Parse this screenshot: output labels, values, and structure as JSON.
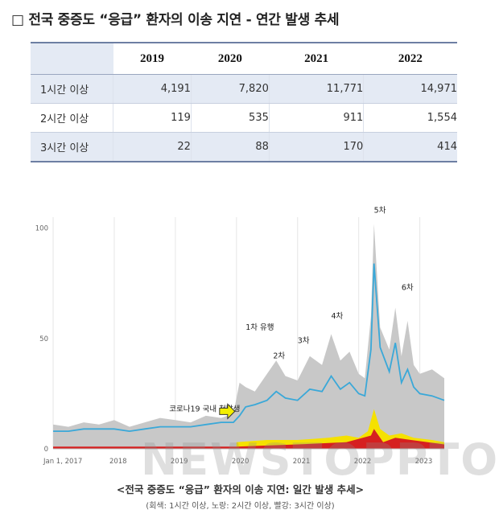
{
  "heading": "□ 전국 중증도 “응급” 환자의 이송 지연 - 연간 발생 추세",
  "table": {
    "years": [
      "2019",
      "2020",
      "2021",
      "2022"
    ],
    "rows": [
      {
        "label": "1시간 이상",
        "values": [
          "4,191",
          "7,820",
          "11,771",
          "14,971"
        ]
      },
      {
        "label": "2시간 이상",
        "values": [
          "119",
          "535",
          "911",
          "1,554"
        ]
      },
      {
        "label": "3시간 이상",
        "values": [
          "22",
          "88",
          "170",
          "414"
        ]
      }
    ]
  },
  "chart_data": {
    "type": "area",
    "title": "<전국 중증도 “응급” 환자의 이송 지연: 일간 발생 추세>",
    "subtitle": "(회색: 1시간 이상, 노랑: 2시간 이상, 빨강: 3시간 이상)",
    "x_tick_labels": [
      "Jan 1, 2017",
      "2018",
      "2019",
      "2020",
      "2021",
      "2022",
      "2023"
    ],
    "y_ticks": [
      0,
      50,
      100
    ],
    "xlim": [
      2017.0,
      2023.4
    ],
    "ylim": [
      0,
      105
    ],
    "series": [
      {
        "name": "1시간 이상",
        "color": "#c8c8c8",
        "x": [
          2017.0,
          2017.25,
          2017.5,
          2017.75,
          2018.0,
          2018.25,
          2018.5,
          2018.75,
          2019.0,
          2019.25,
          2019.5,
          2019.75,
          2019.95,
          2020.05,
          2020.15,
          2020.3,
          2020.5,
          2020.65,
          2020.8,
          2021.0,
          2021.2,
          2021.4,
          2021.55,
          2021.7,
          2021.85,
          2022.0,
          2022.1,
          2022.2,
          2022.25,
          2022.35,
          2022.5,
          2022.6,
          2022.7,
          2022.8,
          2022.9,
          2023.0,
          2023.2,
          2023.4
        ],
        "y": [
          11,
          10,
          12,
          11,
          13,
          10,
          12,
          14,
          13,
          12,
          15,
          14,
          16,
          30,
          28,
          26,
          34,
          40,
          33,
          31,
          42,
          38,
          52,
          40,
          44,
          34,
          32,
          60,
          102,
          55,
          45,
          64,
          42,
          58,
          38,
          34,
          36,
          32
        ]
      },
      {
        "name": "1시간 이상 추세",
        "color": "#3aa8d8",
        "x": [
          2017.0,
          2017.25,
          2017.5,
          2017.75,
          2018.0,
          2018.25,
          2018.5,
          2018.75,
          2019.0,
          2019.25,
          2019.5,
          2019.75,
          2019.95,
          2020.05,
          2020.15,
          2020.3,
          2020.5,
          2020.65,
          2020.8,
          2021.0,
          2021.2,
          2021.4,
          2021.55,
          2021.7,
          2021.85,
          2022.0,
          2022.1,
          2022.2,
          2022.25,
          2022.35,
          2022.5,
          2022.6,
          2022.7,
          2022.8,
          2022.9,
          2023.0,
          2023.2,
          2023.4
        ],
        "y": [
          8,
          8,
          9,
          9,
          9,
          8,
          9,
          10,
          10,
          10,
          11,
          12,
          12,
          15,
          19,
          20,
          22,
          26,
          23,
          22,
          27,
          26,
          33,
          27,
          30,
          25,
          24,
          45,
          84,
          46,
          35,
          48,
          30,
          36,
          28,
          25,
          24,
          22
        ]
      },
      {
        "name": "2시간 이상",
        "color": "#f5e100",
        "x": [
          2020.0,
          2020.5,
          2021.0,
          2021.5,
          2021.8,
          2022.0,
          2022.15,
          2022.25,
          2022.35,
          2022.5,
          2022.7,
          2022.9,
          2023.2,
          2023.4
        ],
        "y": [
          3,
          4,
          4,
          5,
          6,
          5,
          8,
          18,
          9,
          6,
          7,
          5,
          4,
          3
        ]
      },
      {
        "name": "3시간 이상",
        "color": "#d62020",
        "x": [
          2017.0,
          2018.0,
          2019.0,
          2020.0,
          2021.0,
          2021.8,
          2022.2,
          2022.25,
          2022.4,
          2022.6,
          2023.4
        ],
        "y": [
          1,
          1,
          1,
          1,
          2,
          3,
          6,
          9,
          3,
          5,
          2
        ]
      }
    ],
    "annotations": [
      {
        "text": "코로나19 국내 첫발생",
        "x": 2018.9,
        "y": 17
      },
      {
        "text": "1차 유행",
        "x": 2020.15,
        "y": 54
      },
      {
        "text": "2차",
        "x": 2020.6,
        "y": 41
      },
      {
        "text": "3차",
        "x": 2021.0,
        "y": 48
      },
      {
        "text": "4차",
        "x": 2021.55,
        "y": 59
      },
      {
        "text": "5차",
        "x": 2022.25,
        "y": 107
      },
      {
        "text": "6차",
        "x": 2022.7,
        "y": 72
      }
    ],
    "grid": "vertical"
  },
  "watermark": "NEWSTOPPTO"
}
